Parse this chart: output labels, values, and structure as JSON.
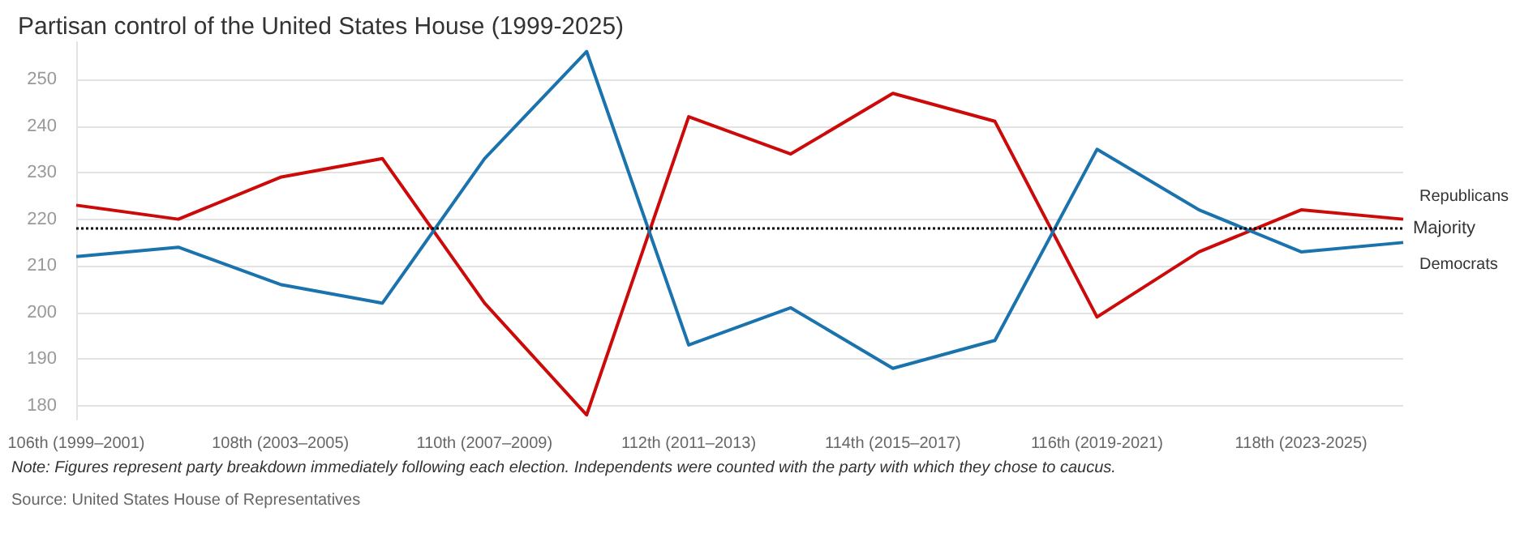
{
  "chart_data": {
    "type": "line",
    "title": "Partisan control of the United States House (1999-2025)",
    "categories": [
      "106th (1999–2001)",
      null,
      "108th (2003–2005)",
      null,
      "110th (2007–2009)",
      null,
      "112th (2011–2013)",
      null,
      "114th (2015–2017)",
      null,
      "116th (2019-2021)",
      null,
      "118th (2023-2025)",
      null
    ],
    "series": [
      {
        "name": "Republicans",
        "color": "#cc0a0a",
        "values": [
          223,
          220,
          229,
          233,
          202,
          178,
          242,
          234,
          247,
          241,
          199,
          213,
          222,
          220
        ]
      },
      {
        "name": "Democrats",
        "color": "#1a73ad",
        "values": [
          212,
          214,
          206,
          202,
          233,
          256,
          193,
          201,
          188,
          194,
          235,
          222,
          213,
          215
        ]
      }
    ],
    "ylim": [
      177,
      258
    ],
    "yticks": [
      180,
      190,
      200,
      210,
      220,
      230,
      240,
      250
    ],
    "grid": "y",
    "legend": false,
    "marker": "none",
    "line_style": "solid",
    "ref_lines": [
      {
        "axis": "y",
        "value": 218,
        "label": "Majority",
        "color": "#000000",
        "line_style": "dotted"
      }
    ],
    "annotations": [
      "Note: Figures represent party breakdown immediately following each election. Independents were counted with the party with which they chose to caucus.",
      "Source: United States House of Representatives"
    ]
  }
}
